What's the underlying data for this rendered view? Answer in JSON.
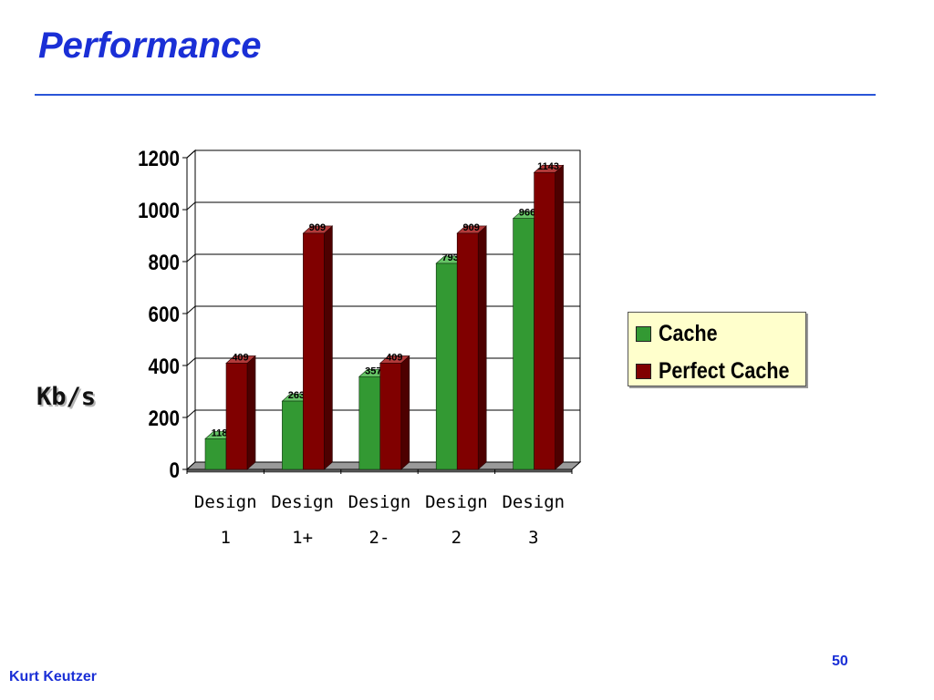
{
  "slide": {
    "title": "Performance",
    "author": "Kurt Keutzer",
    "page_number": "50"
  },
  "colors": {
    "title": "#1a2fd6",
    "rule": "#2a55d8",
    "cache": "#339933",
    "perfect_cache": "#800000",
    "legend_bg": "#ffffcc"
  },
  "chart_data": {
    "type": "bar",
    "title": "",
    "ylabel": "Kb/s",
    "xlabel": "",
    "categories": [
      [
        "Design",
        "1"
      ],
      [
        "Design",
        "1+"
      ],
      [
        "Design",
        "2-"
      ],
      [
        "Design",
        "2"
      ],
      [
        "Design",
        "3"
      ]
    ],
    "series": [
      {
        "name": "Cache",
        "values": [
          118,
          263,
          357,
          793,
          966
        ],
        "labels": [
          "118",
          "263",
          "357",
          "793",
          "966"
        ]
      },
      {
        "name": "Perfect Cache",
        "values": [
          409,
          909,
          409,
          909,
          1143
        ],
        "labels": [
          "409",
          "909",
          "409",
          "909",
          "1143"
        ]
      }
    ],
    "ylim": [
      0,
      1200
    ],
    "yticks": [
      "0",
      "200",
      "400",
      "600",
      "800",
      "1000",
      "1200"
    ],
    "grid": true,
    "style": "3d-clustered-column",
    "legend_position": "right"
  }
}
